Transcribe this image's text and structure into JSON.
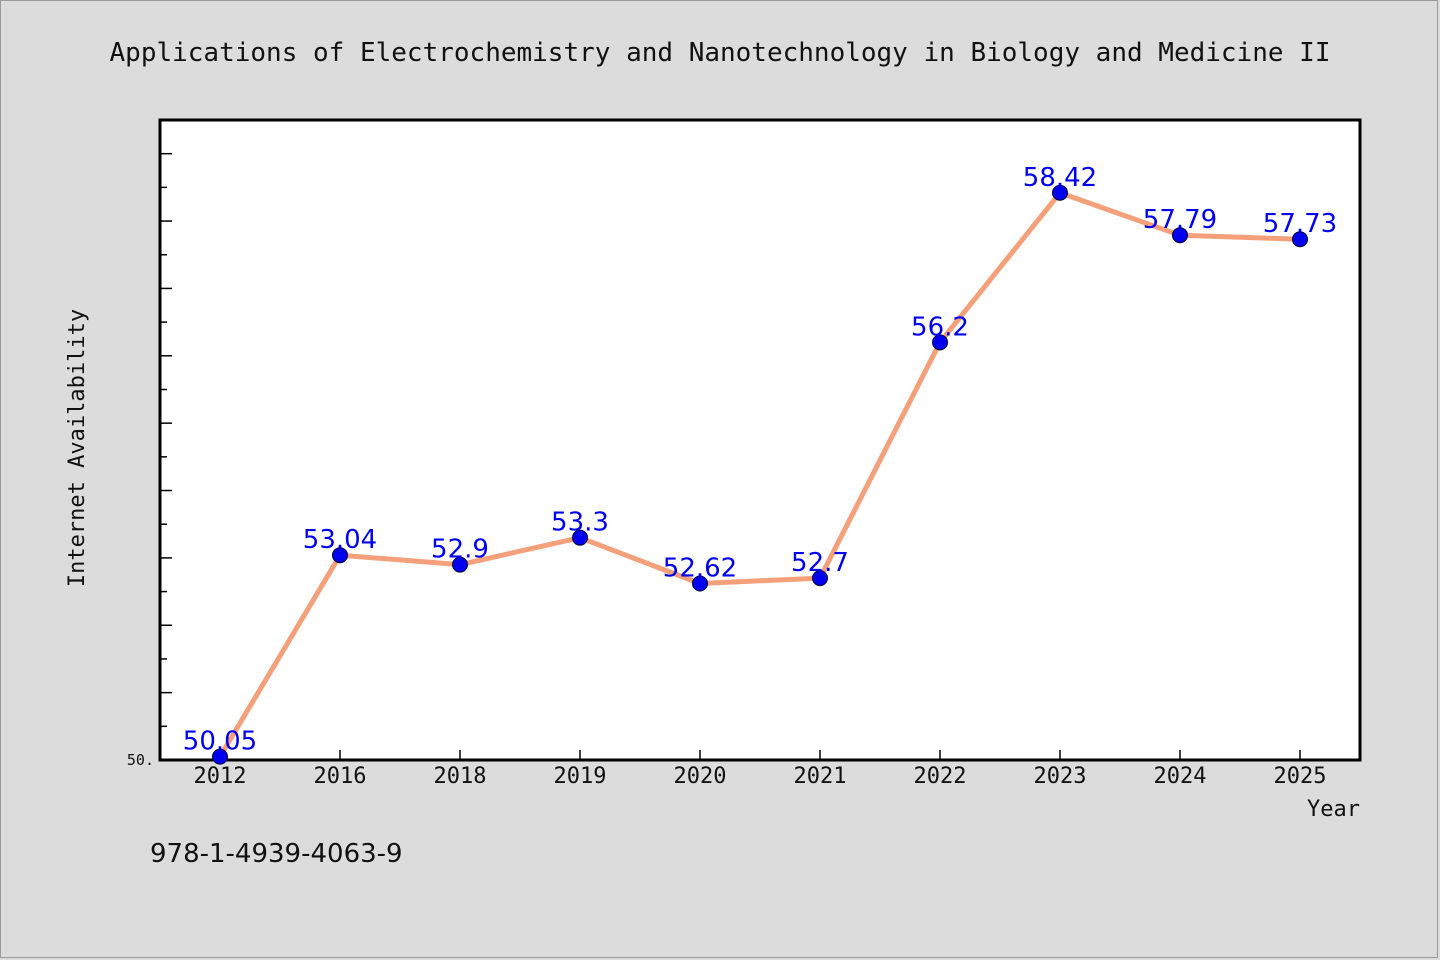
{
  "chart_data": {
    "type": "line",
    "title": "Applications of Electrochemistry and Nanotechnology in Biology and Medicine II",
    "xlabel": "Year",
    "ylabel": "Internet Availability",
    "categories": [
      "2012",
      "2016",
      "2018",
      "2019",
      "2020",
      "2021",
      "2022",
      "2023",
      "2024",
      "2025"
    ],
    "series": [
      {
        "values": [
          50.05,
          53.04,
          52.9,
          53.3,
          52.62,
          52.7,
          56.2,
          58.42,
          57.79,
          57.73
        ],
        "labels": [
          "50.05",
          "53.04",
          "52.9",
          "53.3",
          "52.62",
          "52.7",
          "56.2",
          "58.42",
          "57.79",
          "57.73"
        ]
      }
    ],
    "ylim": [
      50.0,
      59.5
    ],
    "ytick_labels": [
      "50."
    ],
    "line_color": "#f4a07a",
    "marker_color": "#0000ee",
    "label_color": "#0000ee",
    "grid": false,
    "legend": "none"
  },
  "footnote": "978-1-4939-4063-9"
}
